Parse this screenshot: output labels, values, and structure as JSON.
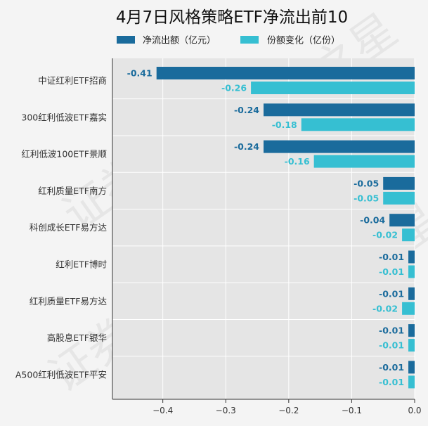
{
  "chart_data": {
    "type": "bar",
    "orientation": "horizontal",
    "title": "4月7日风格策略ETF净流出前10",
    "categories": [
      "中证红利ETF招商",
      "300红利低波ETF嘉实",
      "红利低波100ETF景顺",
      "红利质量ETF南方",
      "科创成长ETF易方达",
      "红利ETF博时",
      "红利质量ETF易方达",
      "高股息ETF银华",
      "A500红利低波ETF平安"
    ],
    "series": [
      {
        "name": "净流出额（亿元）",
        "color": "#1a6b9c",
        "values": [
          -0.41,
          -0.24,
          -0.24,
          -0.05,
          -0.04,
          -0.01,
          -0.01,
          -0.01,
          -0.01
        ],
        "labels": [
          "-0.41",
          "-0.24",
          "-0.24",
          "-0.05",
          "-0.04",
          "-0.01",
          "-0.01",
          "-0.01",
          "-0.01"
        ]
      },
      {
        "name": "份额变化（亿份）",
        "color": "#36bfd2",
        "values": [
          -0.26,
          -0.18,
          -0.16,
          -0.05,
          -0.02,
          -0.01,
          -0.02,
          -0.01,
          -0.01
        ],
        "labels": [
          "-0.26",
          "-0.18",
          "-0.16",
          "-0.05",
          "-0.02",
          "-0.01",
          "-0.02",
          "-0.01",
          "-0.01"
        ]
      }
    ],
    "xlim": [
      -0.48,
      0.0
    ],
    "xticks": [
      -0.4,
      -0.3,
      -0.2,
      -0.1,
      0.0
    ],
    "xtick_labels": [
      "−0.4",
      "−0.3",
      "−0.2",
      "−0.1",
      "0.0"
    ],
    "legend_position": "top",
    "grid": true,
    "background": "#e5e5e5",
    "watermark": "证券之星"
  }
}
